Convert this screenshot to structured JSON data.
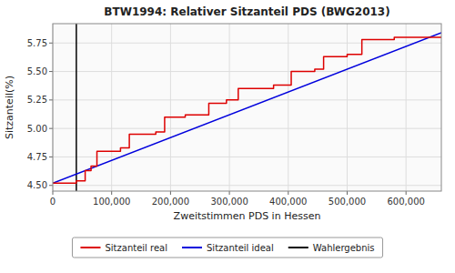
{
  "chart_data": {
    "type": "line",
    "title": "BTW1994: Relativer Sitzanteil PDS (BWG2013)",
    "xlabel": "Zweitstimmen PDS in Hessen",
    "ylabel": "Sitzanteil(%)",
    "xlim": [
      0,
      660000
    ],
    "ylim": [
      4.45,
      5.92
    ],
    "xticks": [
      0,
      {
        "value": 100000,
        "label": "100,000"
      },
      {
        "value": 200000,
        "label": "200,000"
      },
      {
        "value": 300000,
        "label": "300,000"
      },
      {
        "value": 400000,
        "label": "400,000"
      },
      {
        "value": 500000,
        "label": "500,000"
      },
      {
        "value": 600000,
        "label": "600,000"
      }
    ],
    "yticks": [
      {
        "value": 4.5,
        "label": "4.50"
      },
      {
        "value": 4.75,
        "label": "4.75"
      },
      {
        "value": 5.0,
        "label": "5.00"
      },
      {
        "value": 5.25,
        "label": "5.25"
      },
      {
        "value": 5.5,
        "label": "5.50"
      },
      {
        "value": 5.75,
        "label": "5.75"
      }
    ],
    "grid": true,
    "legend": "bottom",
    "series": [
      {
        "name": "Sitzanteil real",
        "type": "line",
        "color": "#dd0000",
        "x": [
          0,
          40000,
          40000,
          55000,
          55000,
          65000,
          65000,
          75000,
          75000,
          115000,
          115000,
          130000,
          130000,
          175000,
          175000,
          190000,
          190000,
          225000,
          225000,
          265000,
          265000,
          295000,
          295000,
          315000,
          315000,
          375000,
          375000,
          405000,
          405000,
          445000,
          445000,
          460000,
          460000,
          500000,
          500000,
          525000,
          525000,
          580000,
          580000,
          660000
        ],
        "values": [
          4.52,
          4.52,
          4.54,
          4.54,
          4.63,
          4.63,
          4.67,
          4.67,
          4.8,
          4.8,
          4.83,
          4.83,
          4.95,
          4.95,
          4.97,
          4.97,
          5.1,
          5.1,
          5.12,
          5.12,
          5.22,
          5.22,
          5.25,
          5.25,
          5.35,
          5.35,
          5.38,
          5.38,
          5.5,
          5.5,
          5.52,
          5.52,
          5.63,
          5.63,
          5.65,
          5.65,
          5.78,
          5.78,
          5.8,
          5.8
        ]
      },
      {
        "name": "Sitzanteil ideal",
        "type": "line",
        "color": "#0000dd",
        "x": [
          0,
          660000
        ],
        "values": [
          4.52,
          5.84
        ]
      },
      {
        "name": "Wahlergebnis",
        "type": "vline",
        "color": "#000000",
        "x": 40000
      }
    ]
  }
}
